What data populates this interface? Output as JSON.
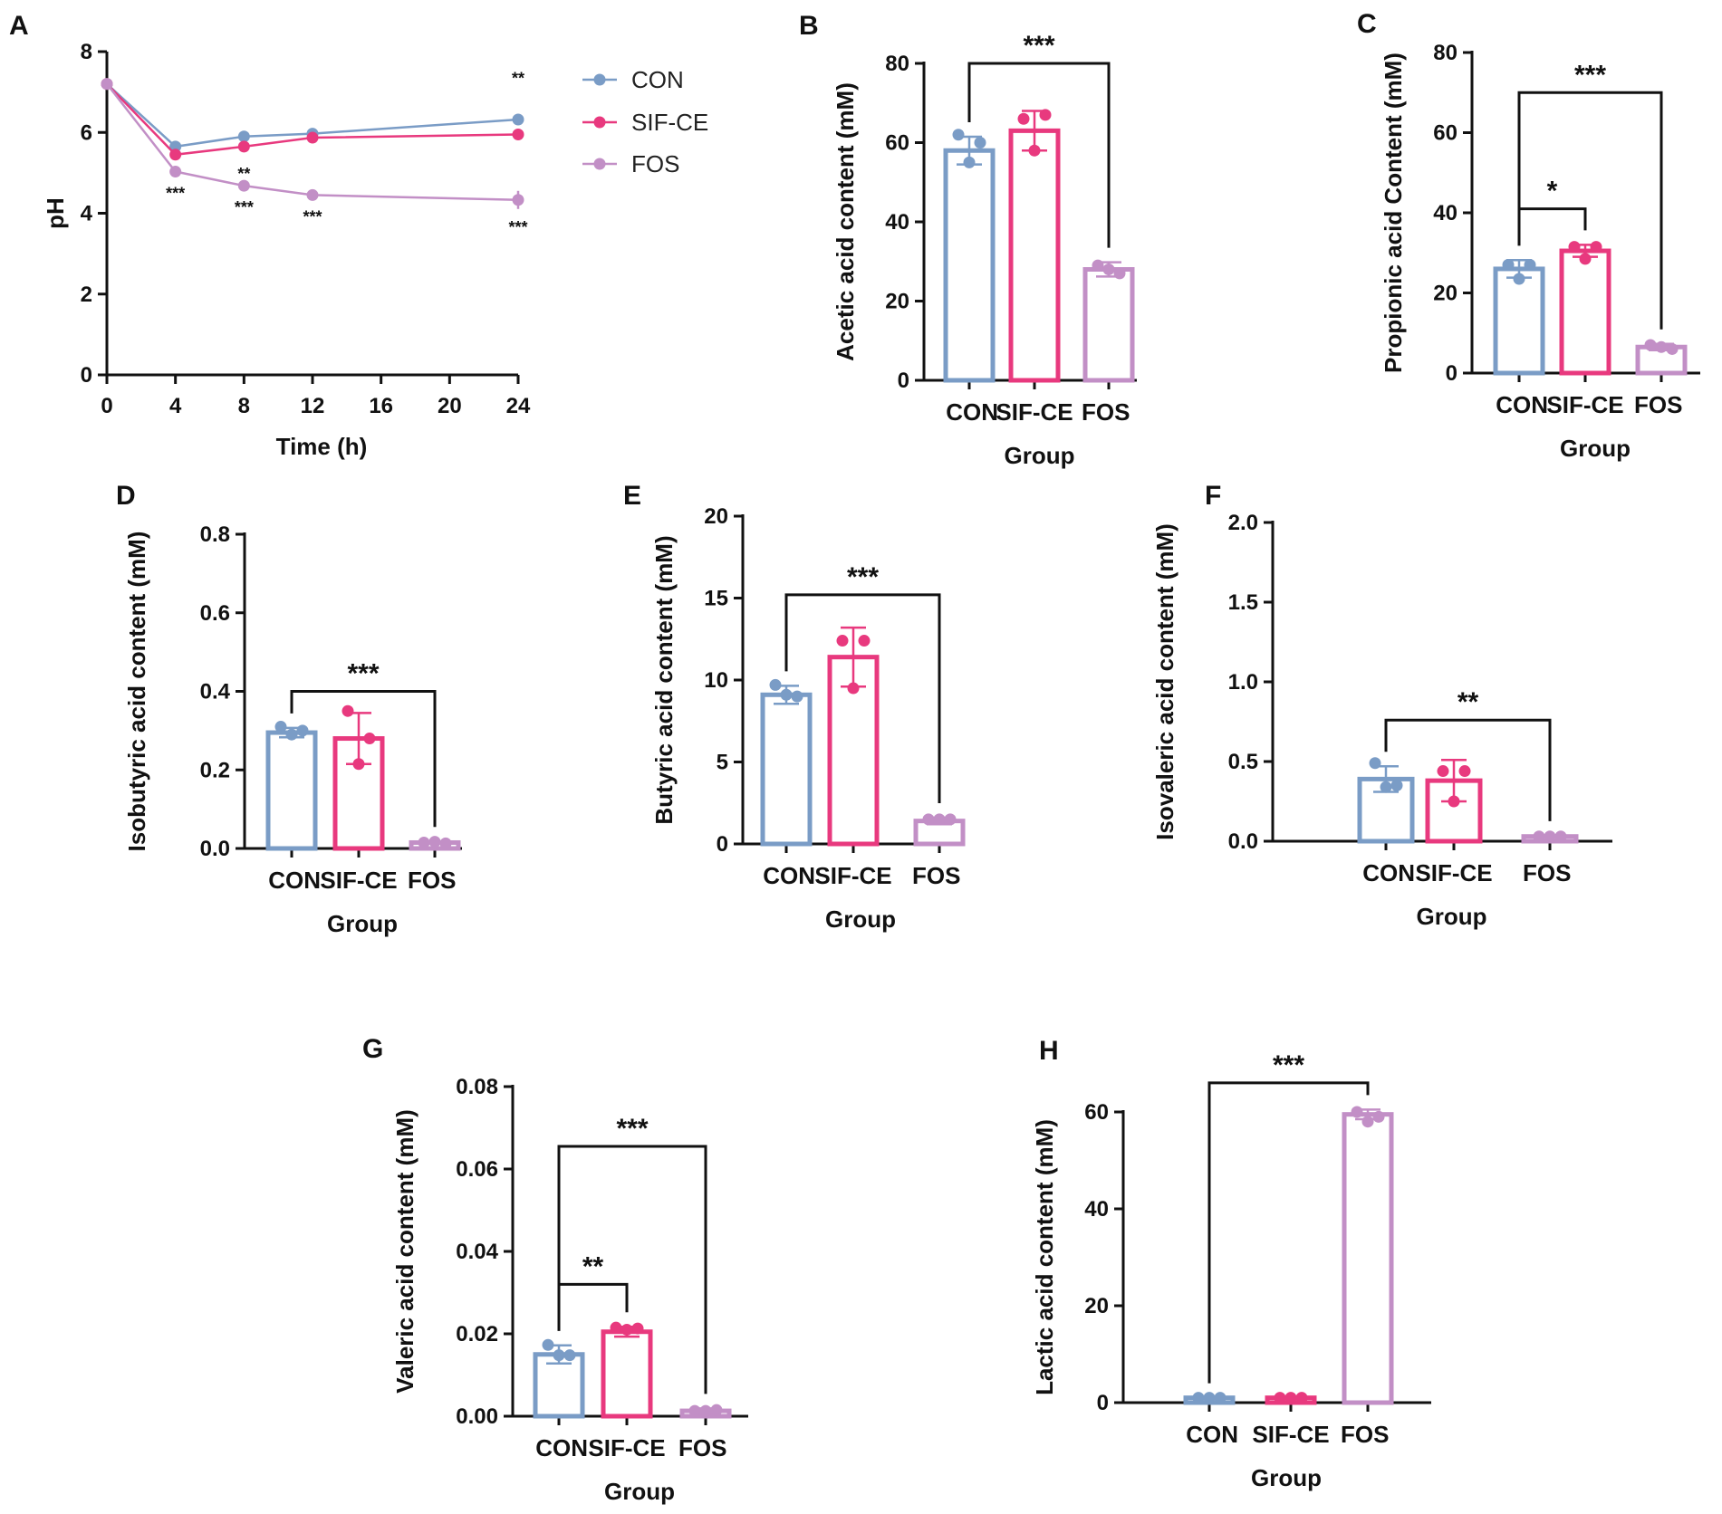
{
  "chart_data": [
    {
      "type": "line",
      "panel": "A",
      "xlabel": "Time (h)",
      "ylabel": "pH",
      "xlim": [
        0,
        24
      ],
      "ylim": [
        0,
        8
      ],
      "xticks": [
        "0",
        "4",
        "8",
        "12",
        "16",
        "20",
        "24"
      ],
      "yticks": [
        "0",
        "2",
        "4",
        "6",
        "8"
      ],
      "x": [
        0,
        4,
        8,
        12,
        24
      ],
      "series": [
        {
          "name": "CON",
          "color": "#7a9cc6",
          "values": [
            7.2,
            5.65,
            5.9,
            5.97,
            6.32
          ]
        },
        {
          "name": "SIF-CE",
          "color": "#e8397e",
          "values": [
            7.2,
            5.45,
            5.65,
            5.87,
            5.95
          ]
        },
        {
          "name": "FOS",
          "color": "#c28fc6",
          "values": [
            7.2,
            5.03,
            4.68,
            4.45,
            4.33
          ]
        }
      ],
      "annotations": [
        {
          "x": 4,
          "series": "FOS",
          "text": "***"
        },
        {
          "x": 8,
          "series": "SIF-CE",
          "text": "**"
        },
        {
          "x": 8,
          "series": "FOS",
          "text": "***"
        },
        {
          "x": 12,
          "series": "FOS",
          "text": "***"
        },
        {
          "x": 24,
          "series": "SIF-CE",
          "text": "**"
        },
        {
          "x": 24,
          "series": "FOS",
          "text": "***"
        }
      ],
      "legend": "top-right"
    },
    {
      "type": "bar",
      "panel": "B",
      "categories": [
        "CON",
        "SIF-CE",
        "FOS"
      ],
      "values": [
        58,
        63,
        28
      ],
      "errors": [
        3.5,
        5,
        1.8
      ],
      "points": [
        [
          62,
          60,
          55
        ],
        [
          66,
          67,
          58
        ],
        [
          29,
          27,
          28
        ]
      ],
      "ylabel": "Acetic acid content (mM)",
      "xlabel": "Group",
      "ylim": [
        0,
        80
      ],
      "yticks": [
        "0",
        "20",
        "40",
        "60",
        "80"
      ],
      "brackets": [
        {
          "from": 0,
          "to": 2,
          "level": 80,
          "text": "***"
        }
      ]
    },
    {
      "type": "bar",
      "panel": "C",
      "categories": [
        "CON",
        "SIF-CE",
        "FOS"
      ],
      "values": [
        26,
        30.5,
        6.5
      ],
      "errors": [
        2.2,
        1.5,
        0.8
      ],
      "points": [
        [
          27,
          27,
          23.5
        ],
        [
          31.5,
          31.5,
          28.5
        ],
        [
          7,
          6,
          6.5
        ]
      ],
      "ylabel": "Propionic acid Content (mM)",
      "xlabel": "Group",
      "ylim": [
        0,
        80
      ],
      "yticks": [
        "0",
        "20",
        "40",
        "60",
        "80"
      ],
      "brackets": [
        {
          "from": 0,
          "to": 1,
          "level": 41,
          "text": "*"
        },
        {
          "from": 0,
          "to": 2,
          "level": 70,
          "text": "***"
        }
      ]
    },
    {
      "type": "bar",
      "panel": "D",
      "categories": [
        "CON",
        "SIF-CE",
        "FOS"
      ],
      "values": [
        0.295,
        0.28,
        0.015
      ],
      "errors": [
        0.012,
        0.065,
        0.003
      ],
      "points": [
        [
          0.31,
          0.3,
          0.29
        ],
        [
          0.35,
          0.28,
          0.215
        ],
        [
          0.015,
          0.013,
          0.017
        ]
      ],
      "ylabel": "Isobutyric acid content (mM)",
      "xlabel": "Group",
      "ylim": [
        0,
        0.8
      ],
      "yticks": [
        "0.0",
        "0.2",
        "0.4",
        "0.6",
        "0.8"
      ],
      "brackets": [
        {
          "from": 0,
          "to": 2,
          "level": 0.4,
          "text": "***"
        }
      ]
    },
    {
      "type": "bar",
      "panel": "E",
      "categories": [
        "CON",
        "SIF-CE",
        "FOS"
      ],
      "values": [
        9.1,
        11.4,
        1.4
      ],
      "errors": [
        0.55,
        1.8,
        0.2
      ],
      "points": [
        [
          9.7,
          9,
          9.1
        ],
        [
          12.4,
          12.4,
          9.5
        ],
        [
          1.5,
          1.5,
          1.5
        ]
      ],
      "ylabel": "Butyric acid content (mM)",
      "xlabel": "Group",
      "ylim": [
        0,
        20
      ],
      "yticks": [
        "0",
        "5",
        "10",
        "15",
        "20"
      ],
      "brackets": [
        {
          "from": 0,
          "to": 2,
          "level": 15.2,
          "text": "***"
        }
      ]
    },
    {
      "type": "bar",
      "panel": "F",
      "categories": [
        "CON",
        "SIF-CE",
        "FOS"
      ],
      "values": [
        0.39,
        0.38,
        0.03
      ],
      "errors": [
        0.08,
        0.13,
        0.005
      ],
      "points": [
        [
          0.49,
          0.35,
          0.34
        ],
        [
          0.44,
          0.44,
          0.25
        ],
        [
          0.03,
          0.03,
          0.03
        ]
      ],
      "ylabel": "Isovaleric acid content (mM)",
      "xlabel": "Group",
      "ylim": [
        0,
        2.0
      ],
      "yticks": [
        "0.0",
        "0.5",
        "1.0",
        "1.5",
        "2.0"
      ],
      "brackets": [
        {
          "from": 0,
          "to": 2,
          "level": 0.76,
          "text": "**"
        }
      ]
    },
    {
      "type": "bar",
      "panel": "G",
      "categories": [
        "CON",
        "SIF-CE",
        "FOS"
      ],
      "values": [
        0.015,
        0.0205,
        0.0013
      ],
      "errors": [
        0.0022,
        0.0012,
        0.0006
      ],
      "points": [
        [
          0.0173,
          0.0148,
          0.0148
        ],
        [
          0.0215,
          0.0213,
          0.021
        ],
        [
          0.0013,
          0.0015,
          0.0013
        ]
      ],
      "ylabel": "Valeric acid content (mM)",
      "xlabel": "Group",
      "ylim": [
        0,
        0.08
      ],
      "yticks": [
        "0.00",
        "0.02",
        "0.04",
        "0.06",
        "0.08"
      ],
      "brackets": [
        {
          "from": 0,
          "to": 1,
          "level": 0.032,
          "text": "**"
        },
        {
          "from": 0,
          "to": 2,
          "level": 0.0655,
          "text": "***"
        }
      ]
    },
    {
      "type": "bar",
      "panel": "H",
      "categories": [
        "CON",
        "SIF-CE",
        "FOS"
      ],
      "values": [
        1,
        1,
        59.5
      ],
      "errors": [
        0,
        0,
        1
      ],
      "points": [
        [
          1,
          1,
          1
        ],
        [
          1,
          1,
          1
        ],
        [
          60,
          59,
          58
        ]
      ],
      "ylabel": "Lactic acid content (mM)",
      "xlabel": "Group",
      "ylim": [
        0,
        66
      ],
      "yticks": [
        "0",
        "20",
        "40",
        "60"
      ],
      "brackets": [
        {
          "from": 0,
          "to": 2,
          "level": 66,
          "text": "***"
        }
      ]
    }
  ]
}
